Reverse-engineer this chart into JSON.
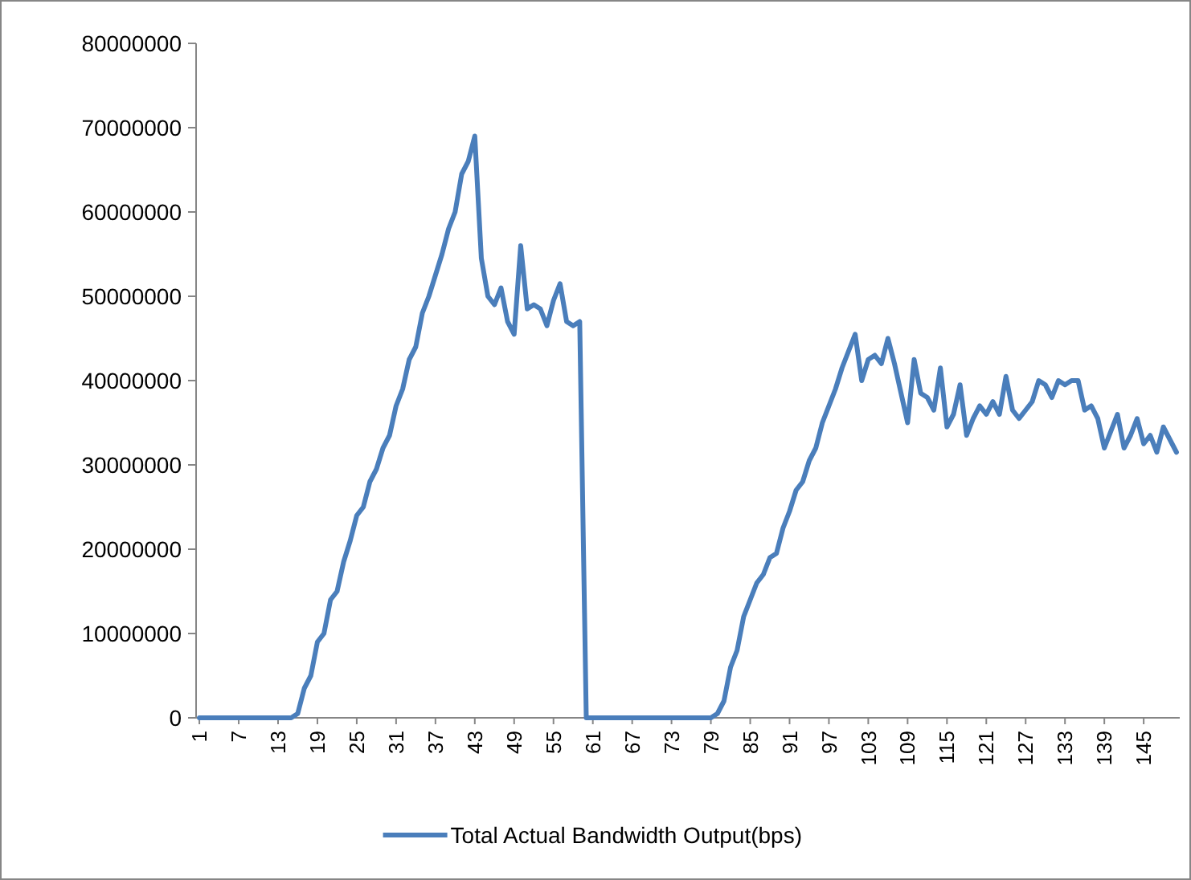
{
  "chart_data": {
    "type": "line",
    "categories": [
      "1",
      null,
      null,
      null,
      null,
      null,
      "7",
      null,
      null,
      null,
      null,
      null,
      "13",
      null,
      null,
      null,
      null,
      null,
      "19",
      null,
      null,
      null,
      null,
      null,
      "25",
      null,
      null,
      null,
      null,
      null,
      "31",
      null,
      null,
      null,
      null,
      null,
      "37",
      null,
      null,
      null,
      null,
      null,
      "43",
      null,
      null,
      null,
      null,
      null,
      "49",
      null,
      null,
      null,
      null,
      null,
      "55",
      null,
      null,
      null,
      null,
      null,
      "61",
      null,
      null,
      null,
      null,
      null,
      "67",
      null,
      null,
      null,
      null,
      null,
      "73",
      null,
      null,
      null,
      null,
      null,
      "79",
      null,
      null,
      null,
      null,
      null,
      "85",
      null,
      null,
      null,
      null,
      null,
      "91",
      null,
      null,
      null,
      null,
      null,
      "97",
      null,
      null,
      null,
      null,
      null,
      "103",
      null,
      null,
      null,
      null,
      null,
      "109",
      null,
      null,
      null,
      null,
      null,
      "115",
      null,
      null,
      null,
      null,
      null,
      "121",
      null,
      null,
      null,
      null,
      null,
      "127",
      null,
      null,
      null,
      null,
      null,
      "133",
      null,
      null,
      null,
      null,
      null,
      "139",
      null,
      null,
      null,
      null,
      null,
      "145",
      null,
      null,
      null,
      null,
      null
    ],
    "series": [
      {
        "name": "Total Actual Bandwidth Output(bps)",
        "color": "#4a7ebb",
        "values": [
          0,
          0,
          0,
          0,
          0,
          0,
          0,
          0,
          0,
          0,
          0,
          0,
          0,
          0,
          0,
          500000,
          3500000,
          5000000,
          9000000,
          10000000,
          14000000,
          15000000,
          18500000,
          21000000,
          24000000,
          25000000,
          28000000,
          29500000,
          32000000,
          33500000,
          37000000,
          39000000,
          42500000,
          44000000,
          48000000,
          50000000,
          52500000,
          55000000,
          58000000,
          60000000,
          64500000,
          66000000,
          69000000,
          54500000,
          50000000,
          49000000,
          51000000,
          47000000,
          45500000,
          56000000,
          48500000,
          49000000,
          48500000,
          46500000,
          49500000,
          51500000,
          47000000,
          46500000,
          47000000,
          0,
          0,
          0,
          0,
          0,
          0,
          0,
          0,
          0,
          0,
          0,
          0,
          0,
          0,
          0,
          0,
          0,
          0,
          0,
          0,
          500000,
          2000000,
          6000000,
          8000000,
          12000000,
          14000000,
          16000000,
          17000000,
          19000000,
          19500000,
          22500000,
          24500000,
          27000000,
          28000000,
          30500000,
          32000000,
          35000000,
          37000000,
          39000000,
          41500000,
          43500000,
          45500000,
          40000000,
          42500000,
          43000000,
          42000000,
          45000000,
          42000000,
          38500000,
          35000000,
          42500000,
          38500000,
          38000000,
          36500000,
          41500000,
          34500000,
          36000000,
          39500000,
          33500000,
          35500000,
          37000000,
          36000000,
          37500000,
          36000000,
          40500000,
          36500000,
          35500000,
          36500000,
          37500000,
          40000000,
          39500000,
          38000000,
          40000000,
          39500000,
          40000000,
          40000000,
          36500000,
          37000000,
          35500000,
          32000000,
          34000000,
          36000000,
          32000000,
          33500000,
          35500000,
          32500000,
          33500000,
          31500000,
          34500000,
          33000000,
          31500000
        ]
      }
    ],
    "ylim": [
      0,
      80000000
    ],
    "yticks": [
      0,
      10000000,
      20000000,
      30000000,
      40000000,
      50000000,
      60000000,
      70000000,
      80000000
    ],
    "grid": false,
    "legend": "bottom",
    "marker": "none",
    "line_style": "solid"
  }
}
